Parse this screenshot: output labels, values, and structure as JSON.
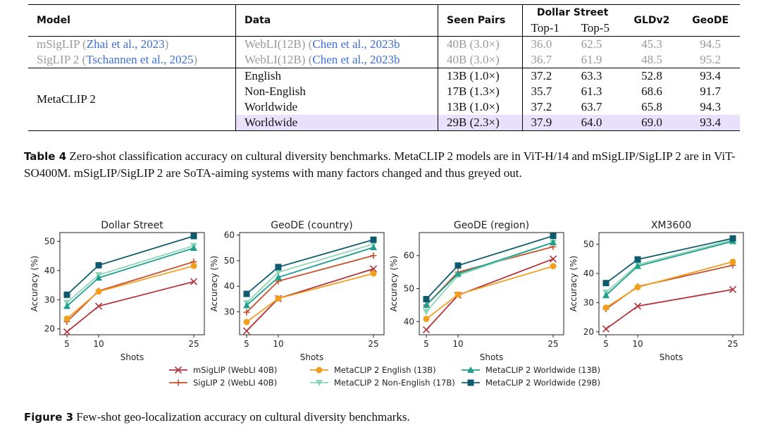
{
  "table": {
    "headers": {
      "model": "Model",
      "data": "Data",
      "seen_pairs": "Seen Pairs",
      "dollar_street": "Dollar Street",
      "top1": "Top-1",
      "top5": "Top-5",
      "gldv2": "GLDv2",
      "geode": "GeoDE"
    },
    "rows": [
      {
        "model": "mSigLIP",
        "cite": "Zhai et al., 2023",
        "data": "WebLI(12B)",
        "data_cite": "Chen et al., 2023b",
        "seen": "40B (3.0×)",
        "top1": "36.0",
        "top5": "62.5",
        "gldv2": "45.3",
        "geode": "94.5"
      },
      {
        "model": "SigLIP 2",
        "cite": "Tschannen et al., 2025",
        "data": "WebLI(12B)",
        "data_cite": "Chen et al., 2023b",
        "seen": "40B (3.0×)",
        "top1": "36.7",
        "top5": "61.9",
        "gldv2": "48.5",
        "geode": "95.2"
      }
    ],
    "metaclip_label": "MetaCLIP 2",
    "metaclip_rows": [
      {
        "data": "English",
        "seen": "13B (1.0×)",
        "top1": "37.2",
        "top5": "63.3",
        "gldv2": "52.8",
        "geode": "93.4"
      },
      {
        "data": "Non-English",
        "seen": "17B (1.3×)",
        "top1": "35.7",
        "top5": "61.3",
        "gldv2": "68.6",
        "geode": "91.7"
      },
      {
        "data": "Worldwide",
        "seen": "13B (1.0×)",
        "top1": "37.2",
        "top5": "63.7",
        "gldv2": "65.8",
        "geode": "94.3"
      },
      {
        "data": "Worldwide",
        "seen": "29B (2.3×)",
        "top1": "37.9",
        "top5": "64.0",
        "gldv2": "69.0",
        "geode": "93.4"
      }
    ],
    "highlight_color": "#e9e0fb"
  },
  "table_caption": {
    "label": "Table 4",
    "text": "Zero-shot classification accuracy on cultural diversity benchmarks. MetaCLIP 2 models are in ViT-H/14 and mSigLIP/SigLIP 2 are in ViT-SO400M. mSigLIP/SigLIP 2 are SoTA-aiming systems with many factors changed and thus greyed out."
  },
  "figure_caption": {
    "label": "Figure 3",
    "text": "Few-shot geo-localization accuracy on cultural diversity benchmarks."
  },
  "chart_data": [
    {
      "type": "line",
      "title": "Dollar Street",
      "xlabel": "Shots",
      "ylabel": "Accuracy (%)",
      "x": [
        5,
        10,
        25
      ],
      "xticks": [
        5,
        10,
        25
      ],
      "yticks": [
        20,
        30,
        40,
        50
      ],
      "ylim": [
        18,
        53
      ],
      "series": [
        {
          "name": "mSigLIP (WebLI 40B)",
          "values": [
            19.0,
            27.8,
            36.2
          ]
        },
        {
          "name": "SigLIP 2 (WebLI 40B)",
          "values": [
            22.5,
            33.0,
            43.0
          ]
        },
        {
          "name": "MetaCLIP 2 English (13B)",
          "values": [
            23.5,
            32.8,
            41.6
          ]
        },
        {
          "name": "MetaCLIP 2 Non-English (17B)",
          "values": [
            29.0,
            38.5,
            48.5
          ]
        },
        {
          "name": "MetaCLIP 2 Worldwide (13B)",
          "values": [
            27.8,
            37.5,
            47.7
          ]
        },
        {
          "name": "MetaCLIP 2 Worldwide (29B)",
          "values": [
            31.7,
            41.8,
            51.8
          ]
        }
      ]
    },
    {
      "type": "line",
      "title": "GeoDE (country)",
      "xlabel": "Shots",
      "ylabel": "Accuracy (%)",
      "x": [
        5,
        10,
        25
      ],
      "xticks": [
        5,
        10,
        25
      ],
      "yticks": [
        30,
        40,
        50,
        60
      ],
      "ylim": [
        21,
        61
      ],
      "series": [
        {
          "name": "mSigLIP (WebLI 40B)",
          "values": [
            22.5,
            35.2,
            46.8
          ]
        },
        {
          "name": "SigLIP 2 (WebLI 40B)",
          "values": [
            29.8,
            42.0,
            52.0
          ]
        },
        {
          "name": "MetaCLIP 2 English (13B)",
          "values": [
            26.0,
            35.2,
            45.0
          ]
        },
        {
          "name": "MetaCLIP 2 Non-English (17B)",
          "values": [
            33.5,
            45.5,
            56.5
          ]
        },
        {
          "name": "MetaCLIP 2 Worldwide (13B)",
          "values": [
            32.5,
            43.5,
            55.2
          ]
        },
        {
          "name": "MetaCLIP 2 Worldwide (29B)",
          "values": [
            37.0,
            47.5,
            58.2
          ]
        }
      ]
    },
    {
      "type": "line",
      "title": "GeoDE (region)",
      "xlabel": "Shots",
      "ylabel": "Accuracy (%)",
      "x": [
        5,
        10,
        25
      ],
      "xticks": [
        5,
        10,
        25
      ],
      "yticks": [
        40,
        50,
        60
      ],
      "ylim": [
        36,
        67
      ],
      "series": [
        {
          "name": "mSigLIP (WebLI 40B)",
          "values": [
            37.5,
            48.0,
            59.0
          ]
        },
        {
          "name": "SigLIP 2 (WebLI 40B)",
          "values": [
            45.0,
            55.0,
            62.7
          ]
        },
        {
          "name": "MetaCLIP 2 English (13B)",
          "values": [
            40.8,
            48.2,
            56.8
          ]
        },
        {
          "name": "MetaCLIP 2 Non-English (17B)",
          "values": [
            43.0,
            54.0,
            64.0
          ]
        },
        {
          "name": "MetaCLIP 2 Worldwide (13B)",
          "values": [
            45.0,
            54.5,
            64.0
          ]
        },
        {
          "name": "MetaCLIP 2 Worldwide (29B)",
          "values": [
            46.8,
            57.0,
            66.0
          ]
        }
      ]
    },
    {
      "type": "line",
      "title": "XM3600",
      "xlabel": "Shots",
      "ylabel": "Accuracy (%)",
      "x": [
        5,
        10,
        25
      ],
      "xticks": [
        5,
        10,
        25
      ],
      "yticks": [
        20,
        30,
        40,
        50
      ],
      "ylim": [
        19,
        54
      ],
      "series": [
        {
          "name": "mSigLIP (WebLI 40B)",
          "values": [
            21.0,
            28.8,
            34.5
          ]
        },
        {
          "name": "SigLIP 2 (WebLI 40B)",
          "values": [
            27.8,
            35.5,
            42.8
          ]
        },
        {
          "name": "MetaCLIP 2 English (13B)",
          "values": [
            28.3,
            35.3,
            44.0
          ]
        },
        {
          "name": "MetaCLIP 2 Non-English (17B)",
          "values": [
            33.5,
            43.0,
            51.5
          ]
        },
        {
          "name": "MetaCLIP 2 Worldwide (13B)",
          "values": [
            32.5,
            42.5,
            51.0
          ]
        },
        {
          "name": "MetaCLIP 2 Worldwide (29B)",
          "values": [
            36.7,
            44.8,
            52.0
          ]
        }
      ]
    }
  ],
  "series_styles": [
    {
      "color": "#b5323a",
      "marker": "x"
    },
    {
      "color": "#c8502c",
      "marker": "plus"
    },
    {
      "color": "#f0a01e",
      "marker": "circle"
    },
    {
      "color": "#8fd6b9",
      "marker": "triangle-down"
    },
    {
      "color": "#1fa08c",
      "marker": "triangle-up"
    },
    {
      "color": "#0e5a6e",
      "marker": "square"
    }
  ]
}
